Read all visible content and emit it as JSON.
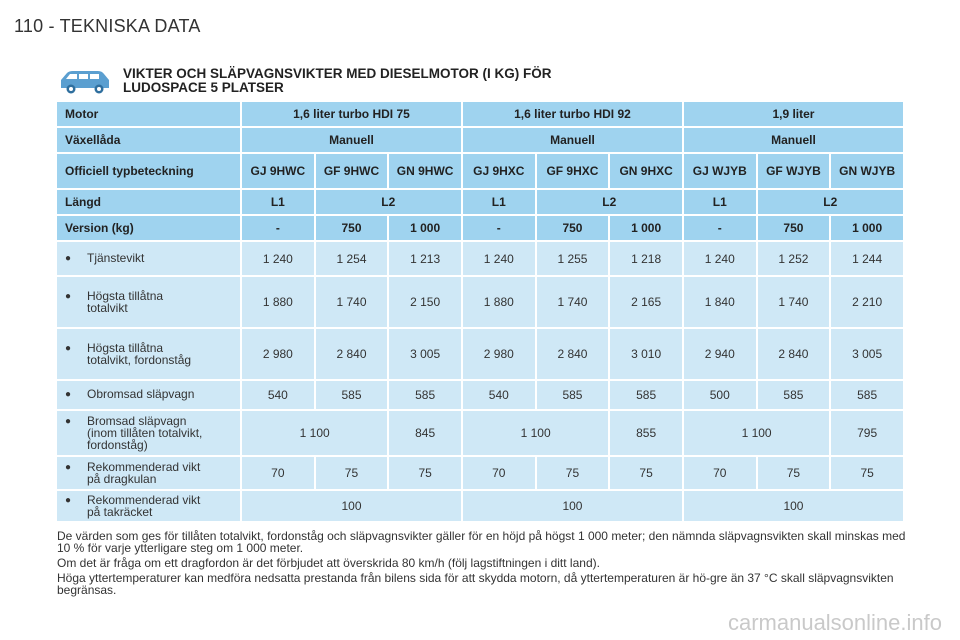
{
  "page": {
    "header": "110 - TEKNISKA DATA",
    "title_line1": "VIKTER OCH SLÄPVAGNSVIKTER MED DIESELMOTOR (I KG) FÖR",
    "title_line2": "LUDOSPACE 5 PLATSER",
    "watermark": "carmanualsonline.info"
  },
  "icons": {
    "car": "car-icon",
    "bullet": "●"
  },
  "colors": {
    "header_cell": "#9fd3ef",
    "data_cell": "#cfe8f6"
  },
  "table": {
    "motor": {
      "label": "Motor",
      "values": [
        "1,6 liter turbo HDI 75",
        "1,6 liter turbo HDI 92",
        "1,9 liter"
      ]
    },
    "gearbox": {
      "label": "Växellåda",
      "values": [
        "Manuell",
        "Manuell",
        "Manuell"
      ]
    },
    "typecode": {
      "label": "Officiell typbeteckning",
      "values": [
        "GJ 9HWC",
        "GF 9HWC",
        "GN 9HWC",
        "GJ 9HXC",
        "GF 9HXC",
        "GN 9HXC",
        "GJ WJYB",
        "GF WJYB",
        "GN WJYB"
      ]
    },
    "length": {
      "label": "Längd",
      "values": [
        "L1",
        "L2",
        "L1",
        "L2",
        "L1",
        "L2"
      ]
    },
    "version": {
      "label": "Version (kg)",
      "values": [
        "-",
        "750",
        "1 000",
        "-",
        "750",
        "1 000",
        "-",
        "750",
        "1 000"
      ]
    },
    "tjanstevikt": {
      "label": "Tjänstevikt",
      "values": [
        "1 240",
        "1 254",
        "1 213",
        "1 240",
        "1 255",
        "1 218",
        "1 240",
        "1 252",
        "1 244"
      ]
    },
    "totalvikt": {
      "label_1": "Högsta tillåtna",
      "label_2": "totalvikt",
      "values": [
        "1 880",
        "1 740",
        "2 150",
        "1 880",
        "1 740",
        "2 165",
        "1 840",
        "1 740",
        "2 210"
      ]
    },
    "totalvikt_fordonstag": {
      "label_1": "Högsta tillåtna",
      "label_2": "totalvikt, fordonståg",
      "values": [
        "2 980",
        "2 840",
        "3 005",
        "2 980",
        "2 840",
        "3 010",
        "2 940",
        "2 840",
        "3 005"
      ]
    },
    "obromsad": {
      "label": "Obromsad släpvagn",
      "values": [
        "540",
        "585",
        "585",
        "540",
        "585",
        "585",
        "500",
        "585",
        "585"
      ]
    },
    "bromsad": {
      "label_1": "Bromsad släpvagn",
      "label_2": "(inom tillåten totalvikt,",
      "label_3": "fordonståg)",
      "values": [
        "1 100",
        "845",
        "1 100",
        "855",
        "1 100",
        "795"
      ]
    },
    "dragkula": {
      "label_1": "Rekommenderad vikt",
      "label_2": "på dragkulan",
      "values": [
        "70",
        "75",
        "75",
        "70",
        "75",
        "75",
        "70",
        "75",
        "75"
      ]
    },
    "takracke": {
      "label_1": "Rekommenderad vikt",
      "label_2": "på takräcket",
      "values": [
        "100",
        "100",
        "100"
      ]
    }
  },
  "notes": {
    "p1": "De värden som ges för tillåten totalvikt, fordonståg och släpvagnsvikter gäller för en höjd på högst 1 000 meter; den nämnda släpvagnsvikten skall minskas med 10 % för varje ytterligare steg om 1 000 meter.",
    "p2": "Om det är fråga om ett dragfordon är det förbjudet att överskrida 80 km/h (följ lagstiftningen i ditt land).",
    "p3": "Höga yttertemperaturer kan medföra nedsatta prestanda från bilens sida för att skydda motorn, då yttertemperaturen är hö-gre än 37 °C skall släpvagnsvikten begränsas."
  }
}
